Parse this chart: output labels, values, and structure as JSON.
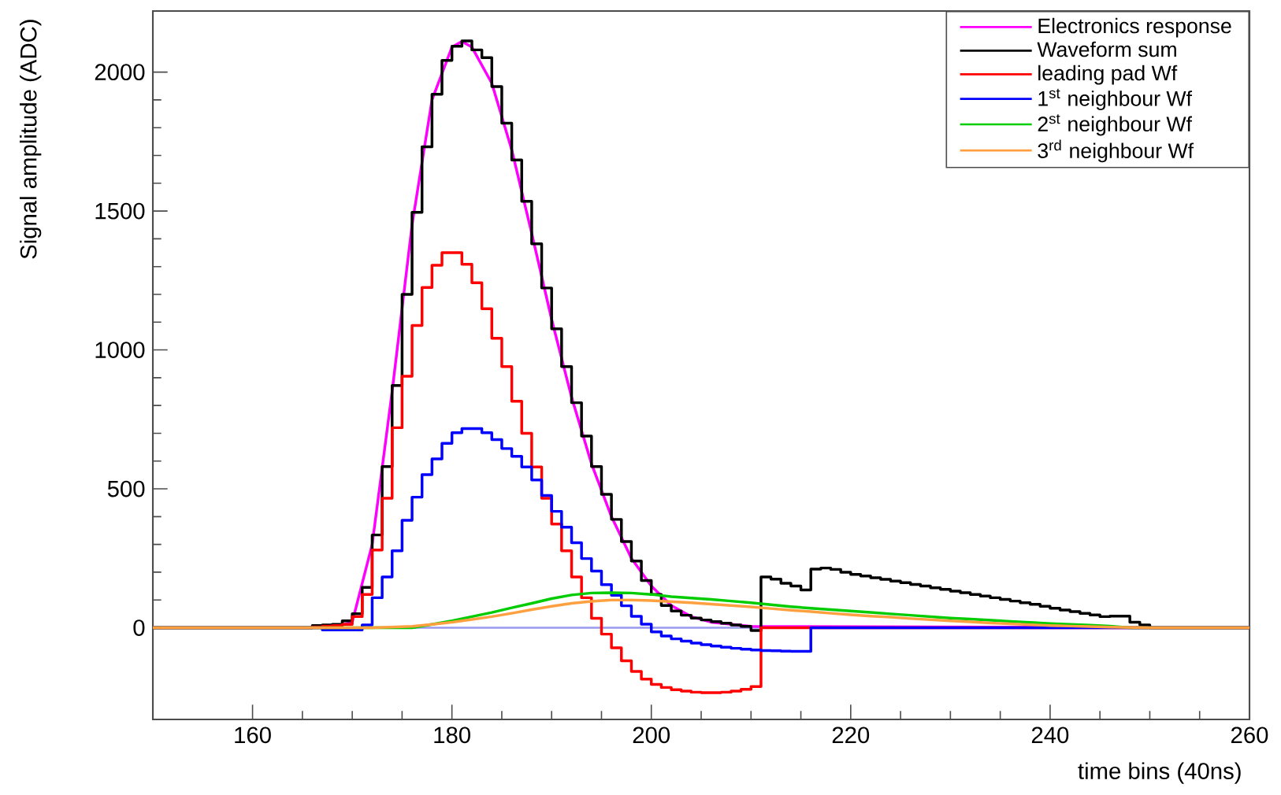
{
  "chart_data": {
    "type": "step",
    "xlabel": "time bins (40ns)",
    "ylabel": "Signal amplitude (ADC)",
    "xlim": [
      150,
      260
    ],
    "ylim": [
      -330,
      2220
    ],
    "xticks": [
      160,
      180,
      200,
      220,
      240,
      260
    ],
    "yticks": [
      0,
      500,
      1000,
      1500,
      2000
    ],
    "grid": false,
    "legend": "top right",
    "ref_lines": [
      {
        "axis": "y",
        "value": 0,
        "color": "#9999ee"
      }
    ],
    "series": [
      {
        "name": "Electronics response",
        "type": "line",
        "color": "#ff00ff",
        "x": [
          150,
          168,
          170,
          172,
          174,
          176,
          178,
          180,
          181,
          182,
          184,
          186,
          188,
          190,
          192,
          194,
          196,
          198,
          200,
          202,
          204,
          206,
          210,
          250,
          260
        ],
        "values": [
          0,
          0,
          20,
          300,
          850,
          1450,
          1900,
          2090,
          2110,
          2090,
          1960,
          1720,
          1420,
          1110,
          830,
          590,
          400,
          250,
          150,
          80,
          40,
          20,
          5,
          0,
          0
        ]
      },
      {
        "name": "Waveform sum",
        "color": "#000000",
        "x": [
          150,
          166,
          167,
          168,
          169,
          170,
          171,
          172,
          173,
          174,
          175,
          176,
          177,
          178,
          179,
          180,
          181,
          182,
          183,
          184,
          185,
          186,
          187,
          188,
          189,
          190,
          191,
          192,
          193,
          194,
          195,
          196,
          197,
          198,
          199,
          200,
          201,
          202,
          203,
          204,
          205,
          206,
          207,
          208,
          209,
          210,
          211,
          212,
          213,
          214,
          215,
          216,
          217,
          218,
          219,
          220,
          221,
          222,
          223,
          224,
          225,
          226,
          227,
          228,
          229,
          230,
          231,
          232,
          233,
          234,
          235,
          236,
          237,
          238,
          239,
          240,
          241,
          242,
          243,
          244,
          245,
          246,
          247,
          248,
          249,
          250,
          260
        ],
        "values": [
          0,
          8,
          10,
          12,
          25,
          50,
          145,
          334,
          580,
          872,
          1200,
          1495,
          1731,
          1920,
          2042,
          2093,
          2112,
          2080,
          2052,
          1948,
          1816,
          1684,
          1535,
          1382,
          1223,
          1076,
          940,
          810,
          690,
          580,
          480,
          390,
          310,
          240,
          170,
          120,
          80,
          60,
          45,
          35,
          28,
          22,
          16,
          10,
          5,
          -10,
          183,
          175,
          160,
          150,
          136,
          211,
          215,
          210,
          200,
          192,
          186,
          180,
          174,
          168,
          162,
          156,
          150,
          144,
          138,
          132,
          126,
          120,
          114,
          108,
          102,
          96,
          90,
          84,
          77,
          70,
          64,
          58,
          52,
          46,
          40,
          42,
          42,
          20,
          10,
          0,
          0
        ]
      },
      {
        "name": "leading pad Wf",
        "color": "#ff0000",
        "x": [
          150,
          166,
          167,
          168,
          169,
          170,
          171,
          172,
          173,
          174,
          175,
          176,
          177,
          178,
          179,
          180,
          181,
          182,
          183,
          184,
          185,
          186,
          187,
          188,
          189,
          190,
          191,
          192,
          193,
          194,
          195,
          196,
          197,
          198,
          199,
          200,
          201,
          202,
          203,
          204,
          205,
          206,
          207,
          208,
          209,
          210,
          211,
          260
        ],
        "values": [
          0,
          3,
          6,
          8,
          12,
          40,
          120,
          280,
          466,
          720,
          905,
          1088,
          1225,
          1305,
          1350,
          1350,
          1308,
          1242,
          1148,
          1042,
          940,
          815,
          700,
          579,
          466,
          373,
          277,
          183,
          108,
          34,
          -23,
          -72,
          -119,
          -157,
          -185,
          -204,
          -215,
          -223,
          -228,
          -232,
          -234,
          -234,
          -232,
          -228,
          -222,
          -212,
          0,
          0
        ]
      },
      {
        "name": "1$^{st}$ neighbour Wf",
        "color": "#0000ff",
        "x": [
          150,
          167,
          171,
          172,
          173,
          174,
          175,
          176,
          177,
          178,
          179,
          180,
          181,
          182,
          183,
          184,
          185,
          186,
          187,
          188,
          189,
          190,
          191,
          192,
          193,
          194,
          195,
          196,
          197,
          198,
          199,
          200,
          201,
          202,
          203,
          204,
          205,
          206,
          207,
          208,
          209,
          210,
          211,
          212,
          213,
          214,
          215,
          216,
          260
        ],
        "values": [
          0,
          -8,
          10,
          108,
          183,
          277,
          387,
          470,
          551,
          608,
          664,
          702,
          717,
          717,
          702,
          677,
          645,
          617,
          579,
          532,
          476,
          419,
          362,
          306,
          249,
          204,
          155,
          117,
          79,
          41,
          13,
          -15,
          -30,
          -40,
          -48,
          -55,
          -61,
          -66,
          -70,
          -74,
          -77,
          -80,
          -82,
          -83,
          -84,
          -85,
          -85,
          0,
          0
        ]
      },
      {
        "name": "2$^{st}$ neighbour Wf",
        "type": "line",
        "color": "#00cc00",
        "x": [
          150,
          176,
          178,
          180,
          182,
          184,
          186,
          188,
          190,
          192,
          194,
          196,
          198,
          200,
          202,
          204,
          206,
          208,
          210,
          212,
          214,
          216,
          218,
          220,
          222,
          224,
          226,
          228,
          230,
          232,
          234,
          236,
          238,
          240,
          242,
          244,
          246,
          248,
          260
        ],
        "values": [
          0,
          0,
          12,
          25,
          40,
          55,
          72,
          88,
          105,
          118,
          125,
          126,
          125,
          120,
          112,
          107,
          102,
          96,
          90,
          83,
          76,
          70,
          65,
          60,
          55,
          50,
          45,
          40,
          35,
          31,
          27,
          23,
          19,
          15,
          12,
          9,
          6,
          0,
          0
        ]
      },
      {
        "name": "3$^{rd}$ neighbour Wf",
        "type": "line",
        "color": "#ffa040",
        "x": [
          150,
          172,
          176,
          178,
          180,
          182,
          184,
          186,
          188,
          190,
          192,
          194,
          196,
          198,
          200,
          202,
          204,
          206,
          208,
          210,
          212,
          214,
          216,
          218,
          220,
          222,
          224,
          226,
          228,
          230,
          232,
          234,
          236,
          238,
          240,
          242,
          244,
          246,
          250,
          260
        ],
        "values": [
          0,
          0,
          5,
          12,
          20,
          30,
          40,
          52,
          65,
          77,
          88,
          95,
          100,
          100,
          98,
          94,
          90,
          85,
          80,
          75,
          69,
          63,
          58,
          52,
          47,
          42,
          38,
          33,
          29,
          25,
          21,
          17,
          14,
          11,
          8,
          6,
          4,
          2,
          0,
          0
        ]
      }
    ]
  }
}
